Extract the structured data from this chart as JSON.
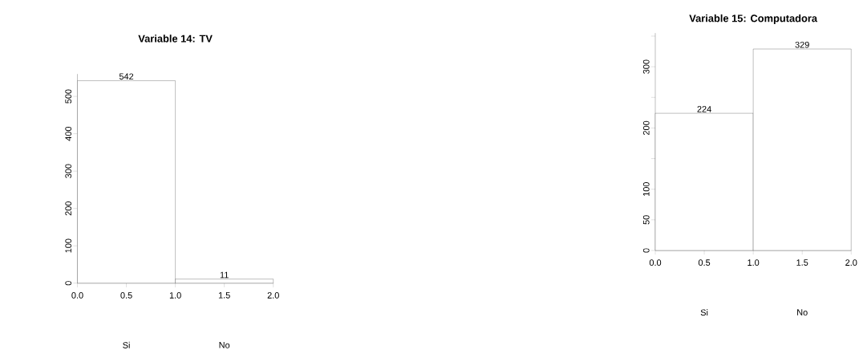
{
  "chart_data": [
    {
      "type": "histogram",
      "title": "Variable 14: TV",
      "bins": [
        0,
        1,
        2
      ],
      "values": [
        542,
        11
      ],
      "categories": [
        "Si",
        "No"
      ],
      "color": "#ffffff",
      "data_labels": true,
      "xlim": [
        0,
        2
      ],
      "ylim": [
        0,
        560
      ],
      "xticks": [
        {
          "value": 0,
          "label": "0.0"
        },
        {
          "value": 0.5,
          "label": "0.5"
        },
        {
          "value": 1,
          "label": "1.0"
        },
        {
          "value": 1.5,
          "label": "1.5"
        },
        {
          "value": 2,
          "label": "2.0"
        }
      ],
      "yticks": [
        0,
        100,
        200,
        300,
        400,
        500
      ]
    },
    {
      "type": "histogram",
      "title": "Variable 15: Computadora",
      "bins": [
        0,
        1,
        2
      ],
      "values": [
        224,
        329
      ],
      "categories": [
        "Si",
        "No"
      ],
      "color": "#ffffff",
      "data_labels": true,
      "xlim": [
        0,
        2
      ],
      "ylim": [
        0,
        355
      ],
      "xticks": [
        {
          "value": 0,
          "label": "0.0"
        },
        {
          "value": 0.5,
          "label": "0.5"
        },
        {
          "value": 1,
          "label": "1.0"
        },
        {
          "value": 1.5,
          "label": "1.5"
        },
        {
          "value": 2,
          "label": "2.0"
        }
      ],
      "yticks": [
        0,
        50,
        100,
        {
          "value": 150,
          "label": null
        },
        200,
        {
          "value": 250,
          "label": null
        },
        300,
        {
          "value": 350,
          "label": null
        }
      ]
    }
  ]
}
